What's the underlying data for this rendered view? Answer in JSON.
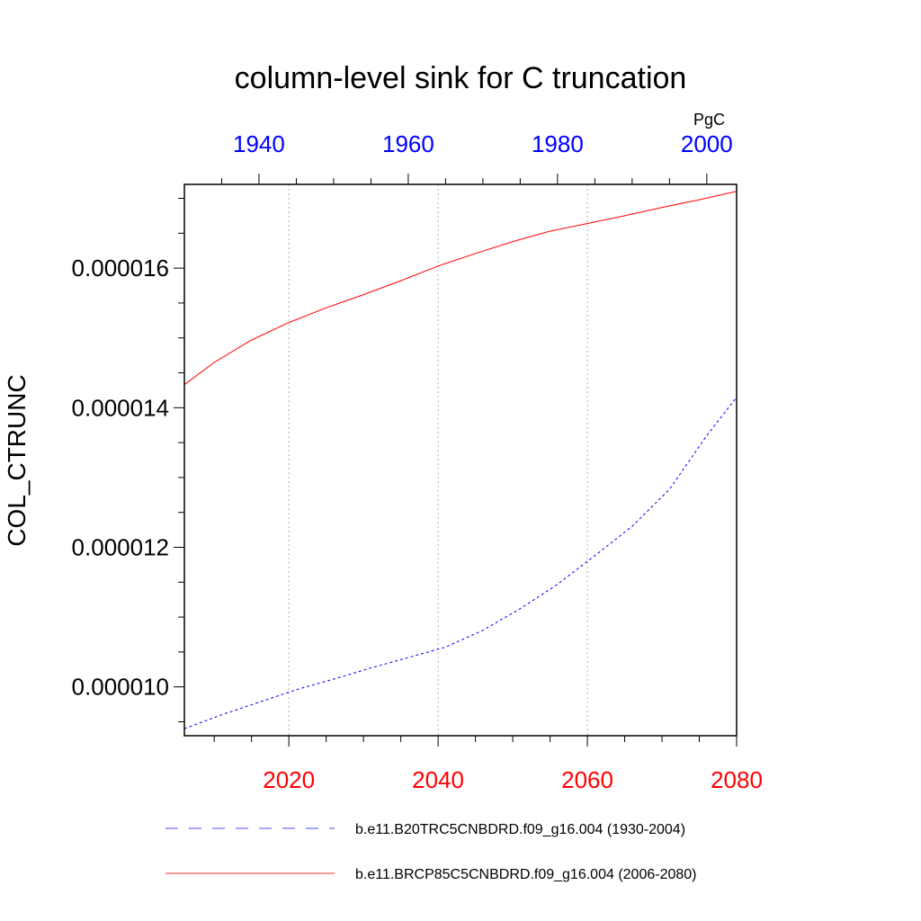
{
  "chart_data": {
    "type": "line",
    "title": "column-level sink for C truncation",
    "ylabel": "COL_CTRUNC",
    "units": "PgC",
    "ylim": [
      9.3e-06,
      1.72e-05
    ],
    "yticks": [
      "0.000010",
      "0.000012",
      "0.000014",
      "0.000016"
    ],
    "ytick_values": [
      1e-05,
      1.2e-05,
      1.4e-05,
      1.6e-05
    ],
    "grid": "vertical dotted",
    "x_bottom": {
      "color": "#ff0000",
      "range": [
        2006,
        2080
      ],
      "ticks": [
        "2020",
        "2040",
        "2060",
        "2080"
      ],
      "tick_values": [
        2020,
        2040,
        2060,
        2080
      ]
    },
    "x_top": {
      "color": "#0000ff",
      "range": [
        1930,
        2004
      ],
      "ticks": [
        "1940",
        "1960",
        "1980",
        "2000"
      ],
      "tick_values": [
        1940,
        1960,
        1980,
        2000
      ]
    },
    "legend_position": "bottom",
    "series": [
      {
        "name": "b.e11.B20TRC5CNBDRD.f09_g16.004 (1930-2004)",
        "axis": "top",
        "color": "#0000ff",
        "dash": "dashed",
        "x": [
          1930,
          1935,
          1940,
          1945,
          1950,
          1955,
          1960,
          1965,
          1970,
          1975,
          1980,
          1985,
          1990,
          1995,
          2000,
          2004
        ],
        "y": [
          9.4e-06,
          9.6e-06,
          9.78e-06,
          9.96e-06,
          1.011e-05,
          1.027e-05,
          1.042e-05,
          1.057e-05,
          1.081e-05,
          1.112e-05,
          1.147e-05,
          1.188e-05,
          1.23e-05,
          1.283e-05,
          1.36e-05,
          1.415e-05
        ]
      },
      {
        "name": "b.e11.BRCP85C5CNBDRD.f09_g16.004 (2006-2080)",
        "axis": "bottom",
        "color": "#ff0000",
        "dash": "solid",
        "x": [
          2006,
          2010,
          2015,
          2020,
          2025,
          2030,
          2035,
          2040,
          2045,
          2050,
          2055,
          2060,
          2065,
          2070,
          2075,
          2080
        ],
        "y": [
          1.433e-05,
          1.465e-05,
          1.497e-05,
          1.522e-05,
          1.543e-05,
          1.562e-05,
          1.582e-05,
          1.603e-05,
          1.621e-05,
          1.638e-05,
          1.653e-05,
          1.664e-05,
          1.675e-05,
          1.687e-05,
          1.698e-05,
          1.71e-05
        ]
      }
    ]
  }
}
